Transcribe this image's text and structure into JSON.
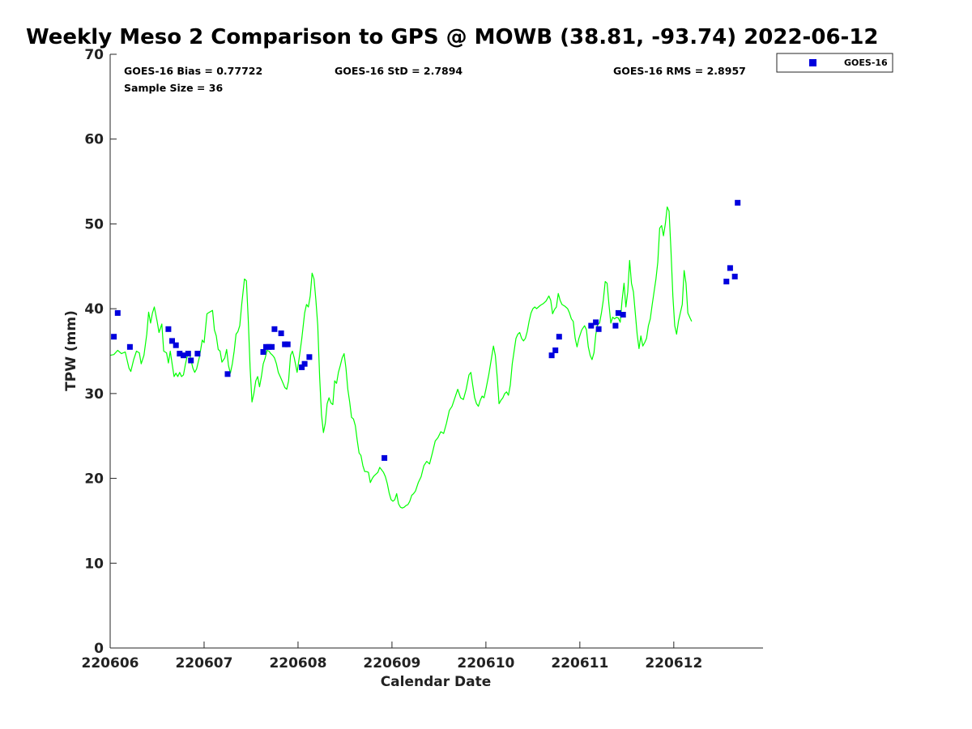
{
  "chart_data": {
    "type": "line",
    "title": "Weekly Meso 2 Comparison to GPS @ MOWB (38.81, -93.74) 2022-06-12",
    "xlabel": "Calendar Date",
    "ylabel": "TPW (mm)",
    "xlim": [
      0,
      6.95
    ],
    "ylim": [
      0,
      70
    ],
    "yticks": [
      0,
      10,
      20,
      30,
      40,
      50,
      60,
      70
    ],
    "xticks": [
      {
        "x": 0,
        "label": "220606"
      },
      {
        "x": 1,
        "label": "220607"
      },
      {
        "x": 2,
        "label": "220608"
      },
      {
        "x": 3,
        "label": "220609"
      },
      {
        "x": 4,
        "label": "220610"
      },
      {
        "x": 5,
        "label": "220611"
      },
      {
        "x": 6,
        "label": "220612"
      }
    ],
    "grid": false,
    "legend_position": "top-right, outside plot",
    "stats": {
      "bias": "GOES-16 Bias = 0.77722",
      "std": "GOES-16 StD = 2.7894",
      "rms": "GOES-16 RMS = 2.8957",
      "sample": "Sample Size = 36"
    },
    "gps_series": {
      "name": "",
      "color": "#00ff00",
      "points": [
        [
          0.0,
          34.5
        ],
        [
          0.04,
          34.6
        ],
        [
          0.08,
          35.1
        ],
        [
          0.12,
          34.7
        ],
        [
          0.16,
          34.9
        ],
        [
          0.2,
          33.0
        ],
        [
          0.22,
          32.6
        ],
        [
          0.25,
          34.0
        ],
        [
          0.28,
          35.0
        ],
        [
          0.31,
          34.8
        ],
        [
          0.33,
          33.5
        ],
        [
          0.36,
          34.5
        ],
        [
          0.39,
          37.0
        ],
        [
          0.41,
          39.6
        ],
        [
          0.43,
          38.3
        ],
        [
          0.45,
          39.5
        ],
        [
          0.47,
          40.2
        ],
        [
          0.5,
          38.5
        ],
        [
          0.52,
          37.2
        ],
        [
          0.55,
          38.2
        ],
        [
          0.57,
          35.0
        ],
        [
          0.6,
          34.8
        ],
        [
          0.62,
          33.6
        ],
        [
          0.64,
          35.0
        ],
        [
          0.66,
          33.5
        ],
        [
          0.68,
          32.0
        ],
        [
          0.7,
          32.4
        ],
        [
          0.72,
          32.0
        ],
        [
          0.74,
          32.5
        ],
        [
          0.76,
          32.0
        ],
        [
          0.78,
          32.2
        ],
        [
          0.8,
          33.4
        ],
        [
          0.82,
          34.4
        ],
        [
          0.84,
          35.0
        ],
        [
          0.86,
          34.0
        ],
        [
          0.88,
          33.0
        ],
        [
          0.9,
          32.5
        ],
        [
          0.92,
          32.9
        ],
        [
          0.95,
          34.3
        ],
        [
          0.98,
          36.3
        ],
        [
          1.0,
          36.0
        ],
        [
          1.03,
          39.4
        ],
        [
          1.06,
          39.6
        ],
        [
          1.09,
          39.8
        ],
        [
          1.11,
          37.5
        ],
        [
          1.13,
          36.8
        ],
        [
          1.15,
          35.2
        ],
        [
          1.17,
          35.0
        ],
        [
          1.19,
          33.7
        ],
        [
          1.22,
          34.2
        ],
        [
          1.24,
          35.2
        ],
        [
          1.26,
          33.3
        ],
        [
          1.28,
          32.4
        ],
        [
          1.3,
          33.5
        ],
        [
          1.32,
          35.0
        ],
        [
          1.34,
          37.0
        ],
        [
          1.36,
          37.3
        ],
        [
          1.38,
          38.0
        ],
        [
          1.4,
          40.5
        ],
        [
          1.43,
          43.5
        ],
        [
          1.45,
          43.3
        ],
        [
          1.47,
          38.7
        ],
        [
          1.49,
          33.0
        ],
        [
          1.51,
          29.0
        ],
        [
          1.53,
          30.0
        ],
        [
          1.55,
          31.5
        ],
        [
          1.57,
          32.0
        ],
        [
          1.59,
          30.8
        ],
        [
          1.61,
          32.0
        ],
        [
          1.63,
          33.5
        ],
        [
          1.65,
          34.2
        ],
        [
          1.67,
          35.1
        ],
        [
          1.69,
          35.0
        ],
        [
          1.71,
          34.7
        ],
        [
          1.73,
          34.5
        ],
        [
          1.75,
          34.2
        ],
        [
          1.77,
          33.5
        ],
        [
          1.79,
          32.5
        ],
        [
          1.81,
          32.0
        ],
        [
          1.83,
          31.5
        ],
        [
          1.86,
          30.7
        ],
        [
          1.88,
          30.5
        ],
        [
          1.9,
          31.5
        ],
        [
          1.92,
          34.5
        ],
        [
          1.94,
          35.0
        ],
        [
          1.96,
          34.2
        ],
        [
          1.99,
          32.5
        ],
        [
          2.01,
          34.0
        ],
        [
          2.04,
          36.5
        ],
        [
          2.07,
          39.5
        ],
        [
          2.09,
          40.5
        ],
        [
          2.11,
          40.2
        ],
        [
          2.13,
          41.5
        ],
        [
          2.15,
          44.2
        ],
        [
          2.17,
          43.5
        ],
        [
          2.19,
          41.0
        ],
        [
          2.21,
          38.0
        ],
        [
          2.23,
          32.0
        ],
        [
          2.25,
          27.5
        ],
        [
          2.27,
          25.4
        ],
        [
          2.29,
          26.5
        ],
        [
          2.31,
          28.8
        ],
        [
          2.33,
          29.5
        ],
        [
          2.35,
          28.9
        ],
        [
          2.37,
          28.7
        ],
        [
          2.39,
          31.5
        ],
        [
          2.41,
          31.2
        ],
        [
          2.43,
          32.5
        ],
        [
          2.45,
          33.3
        ],
        [
          2.47,
          34.2
        ],
        [
          2.49,
          34.7
        ],
        [
          2.51,
          33.0
        ],
        [
          2.53,
          30.5
        ],
        [
          2.55,
          29.0
        ],
        [
          2.57,
          27.2
        ],
        [
          2.59,
          27.0
        ],
        [
          2.61,
          26.2
        ],
        [
          2.63,
          24.5
        ],
        [
          2.65,
          23.0
        ],
        [
          2.67,
          22.7
        ],
        [
          2.69,
          21.5
        ],
        [
          2.71,
          20.8
        ],
        [
          2.73,
          20.8
        ],
        [
          2.75,
          20.7
        ],
        [
          2.77,
          19.5
        ],
        [
          2.79,
          20.0
        ],
        [
          2.81,
          20.3
        ],
        [
          2.83,
          20.5
        ],
        [
          2.85,
          20.7
        ],
        [
          2.87,
          21.3
        ],
        [
          2.89,
          21.0
        ],
        [
          2.91,
          20.7
        ],
        [
          2.93,
          20.2
        ],
        [
          2.95,
          19.4
        ],
        [
          2.97,
          18.3
        ],
        [
          2.99,
          17.5
        ],
        [
          3.01,
          17.3
        ],
        [
          3.03,
          17.5
        ],
        [
          3.05,
          18.2
        ],
        [
          3.07,
          17.0
        ],
        [
          3.09,
          16.6
        ],
        [
          3.11,
          16.5
        ],
        [
          3.13,
          16.6
        ],
        [
          3.15,
          16.8
        ],
        [
          3.17,
          16.9
        ],
        [
          3.19,
          17.3
        ],
        [
          3.21,
          18.0
        ],
        [
          3.23,
          18.2
        ],
        [
          3.25,
          18.5
        ],
        [
          3.28,
          19.5
        ],
        [
          3.31,
          20.2
        ],
        [
          3.34,
          21.5
        ],
        [
          3.37,
          22.0
        ],
        [
          3.4,
          21.7
        ],
        [
          3.43,
          23.0
        ],
        [
          3.46,
          24.4
        ],
        [
          3.49,
          24.8
        ],
        [
          3.52,
          25.5
        ],
        [
          3.55,
          25.3
        ],
        [
          3.58,
          26.5
        ],
        [
          3.61,
          28.0
        ],
        [
          3.64,
          28.5
        ],
        [
          3.67,
          29.5
        ],
        [
          3.7,
          30.5
        ],
        [
          3.73,
          29.5
        ],
        [
          3.76,
          29.3
        ],
        [
          3.79,
          30.5
        ],
        [
          3.82,
          32.2
        ],
        [
          3.84,
          32.5
        ],
        [
          3.86,
          31.0
        ],
        [
          3.88,
          29.5
        ],
        [
          3.9,
          28.8
        ],
        [
          3.92,
          28.5
        ],
        [
          3.94,
          29.2
        ],
        [
          3.96,
          29.7
        ],
        [
          3.98,
          29.5
        ],
        [
          4.0,
          30.5
        ],
        [
          4.03,
          32.2
        ],
        [
          4.06,
          34.2
        ],
        [
          4.08,
          35.6
        ],
        [
          4.1,
          34.5
        ],
        [
          4.12,
          32.0
        ],
        [
          4.14,
          28.8
        ],
        [
          4.16,
          29.2
        ],
        [
          4.18,
          29.5
        ],
        [
          4.2,
          30.0
        ],
        [
          4.22,
          30.2
        ],
        [
          4.24,
          29.8
        ],
        [
          4.26,
          31.0
        ],
        [
          4.28,
          33.5
        ],
        [
          4.3,
          35.0
        ],
        [
          4.32,
          36.5
        ],
        [
          4.34,
          37.0
        ],
        [
          4.36,
          37.2
        ],
        [
          4.38,
          36.5
        ],
        [
          4.4,
          36.2
        ],
        [
          4.42,
          36.5
        ],
        [
          4.44,
          37.3
        ],
        [
          4.46,
          38.5
        ],
        [
          4.48,
          39.5
        ],
        [
          4.5,
          40.0
        ],
        [
          4.52,
          40.2
        ],
        [
          4.54,
          40.0
        ],
        [
          4.56,
          40.2
        ],
        [
          4.58,
          40.4
        ],
        [
          4.61,
          40.6
        ],
        [
          4.64,
          40.9
        ],
        [
          4.67,
          41.5
        ],
        [
          4.69,
          41.0
        ],
        [
          4.71,
          39.4
        ],
        [
          4.73,
          39.9
        ],
        [
          4.75,
          40.2
        ],
        [
          4.77,
          41.8
        ],
        [
          4.79,
          41.0
        ],
        [
          4.81,
          40.5
        ],
        [
          4.84,
          40.3
        ],
        [
          4.87,
          40.0
        ],
        [
          4.89,
          39.5
        ],
        [
          4.91,
          38.8
        ],
        [
          4.93,
          38.5
        ],
        [
          4.95,
          36.5
        ],
        [
          4.97,
          35.5
        ],
        [
          4.99,
          36.5
        ],
        [
          5.02,
          37.5
        ],
        [
          5.05,
          38.0
        ],
        [
          5.07,
          37.5
        ],
        [
          5.09,
          35.5
        ],
        [
          5.11,
          34.5
        ],
        [
          5.13,
          34.0
        ],
        [
          5.15,
          34.8
        ],
        [
          5.17,
          37.0
        ],
        [
          5.19,
          38.2
        ],
        [
          5.21,
          38.3
        ],
        [
          5.23,
          39.5
        ],
        [
          5.25,
          41.0
        ],
        [
          5.27,
          43.2
        ],
        [
          5.29,
          43.0
        ],
        [
          5.31,
          40.5
        ],
        [
          5.33,
          38.3
        ],
        [
          5.35,
          39.0
        ],
        [
          5.37,
          38.8
        ],
        [
          5.39,
          39.0
        ],
        [
          5.41,
          38.9
        ],
        [
          5.43,
          38.4
        ],
        [
          5.45,
          41.0
        ],
        [
          5.47,
          43.0
        ],
        [
          5.49,
          40.2
        ],
        [
          5.51,
          42.0
        ],
        [
          5.53,
          45.7
        ],
        [
          5.55,
          43.0
        ],
        [
          5.57,
          42.0
        ],
        [
          5.59,
          39.5
        ],
        [
          5.61,
          37.0
        ],
        [
          5.63,
          35.3
        ],
        [
          5.65,
          36.8
        ],
        [
          5.67,
          35.6
        ],
        [
          5.69,
          36.0
        ],
        [
          5.71,
          36.5
        ],
        [
          5.73,
          38.0
        ],
        [
          5.75,
          38.8
        ],
        [
          5.77,
          40.5
        ],
        [
          5.79,
          42.0
        ],
        [
          5.81,
          43.5
        ],
        [
          5.83,
          45.5
        ],
        [
          5.85,
          49.5
        ],
        [
          5.87,
          49.8
        ],
        [
          5.89,
          48.6
        ],
        [
          5.91,
          50.0
        ],
        [
          5.93,
          52.0
        ],
        [
          5.95,
          51.5
        ],
        [
          5.97,
          47.0
        ],
        [
          5.99,
          41.5
        ],
        [
          6.01,
          38.0
        ],
        [
          6.03,
          37.0
        ],
        [
          6.05,
          38.5
        ],
        [
          6.07,
          39.5
        ],
        [
          6.09,
          40.5
        ],
        [
          6.11,
          44.5
        ],
        [
          6.13,
          43.0
        ],
        [
          6.15,
          39.5
        ],
        [
          6.17,
          39.0
        ],
        [
          6.19,
          38.5
        ]
      ]
    },
    "goes_series": {
      "name": "GOES-16",
      "color": "#0000dd",
      "points": [
        [
          0.04,
          36.7
        ],
        [
          0.08,
          39.5
        ],
        [
          0.21,
          35.5
        ],
        [
          0.62,
          37.6
        ],
        [
          0.66,
          36.2
        ],
        [
          0.7,
          35.7
        ],
        [
          0.74,
          34.7
        ],
        [
          0.78,
          34.5
        ],
        [
          0.83,
          34.7
        ],
        [
          0.86,
          33.9
        ],
        [
          0.93,
          34.7
        ],
        [
          1.25,
          32.3
        ],
        [
          1.63,
          34.9
        ],
        [
          1.66,
          35.5
        ],
        [
          1.69,
          35.5
        ],
        [
          1.72,
          35.5
        ],
        [
          1.75,
          37.6
        ],
        [
          1.82,
          37.1
        ],
        [
          1.86,
          35.8
        ],
        [
          1.89,
          35.8
        ],
        [
          2.04,
          33.1
        ],
        [
          2.07,
          33.5
        ],
        [
          2.12,
          34.3
        ],
        [
          2.92,
          22.4
        ],
        [
          4.7,
          34.5
        ],
        [
          4.74,
          35.1
        ],
        [
          4.78,
          36.7
        ],
        [
          5.12,
          38.0
        ],
        [
          5.17,
          38.4
        ],
        [
          5.2,
          37.6
        ],
        [
          5.38,
          38.0
        ],
        [
          5.41,
          39.5
        ],
        [
          5.46,
          39.3
        ],
        [
          6.56,
          43.2
        ],
        [
          6.6,
          44.8
        ],
        [
          6.65,
          43.8
        ],
        [
          6.68,
          52.5
        ]
      ]
    }
  }
}
